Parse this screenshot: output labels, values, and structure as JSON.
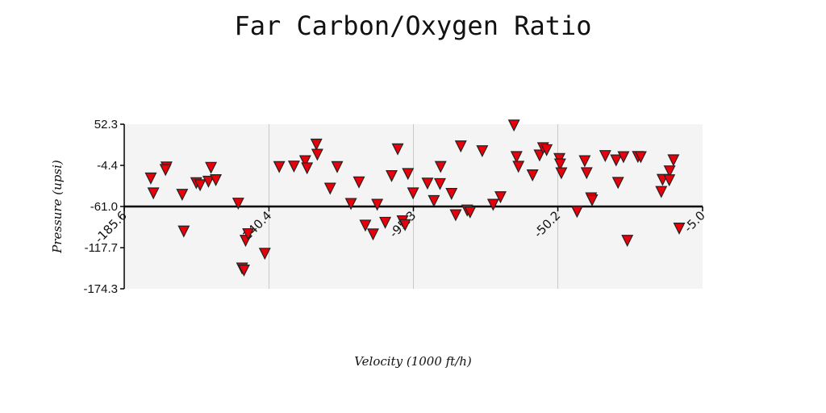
{
  "chart_data": {
    "type": "scatter",
    "title": "Far Carbon/Oxygen Ratio",
    "xlabel": "Velocity (1000 ft/h)",
    "ylabel": "Pressure (upsi)",
    "xlim": [
      -185.6,
      -5.0
    ],
    "ylim": [
      -174.3,
      52.3
    ],
    "x_ticks": [
      "-185.6",
      "-140.4",
      "-95.3",
      "-50.2",
      "-5.0"
    ],
    "y_ticks": [
      "52.3",
      "-4.4",
      "-61.0",
      "-117.7",
      "-174.3"
    ],
    "x_tick_values": [
      -185.6,
      -140.4,
      -95.3,
      -50.2,
      -5.0
    ],
    "y_tick_values": [
      52.3,
      -4.4,
      -61.0,
      -117.7,
      -174.3
    ],
    "baseline_y": -61.0,
    "grid": "vertical",
    "marker": "triangle-down",
    "colors": {
      "marker_fill": "#e8000b",
      "marker_stroke": "#222222",
      "plot_bg": "#f4f4f4",
      "axis": "#000000",
      "grid": "#c8c8c8"
    },
    "points": [
      [
        -177.3,
        -21.6
      ],
      [
        -176.5,
        -42.1
      ],
      [
        -172.4,
        -6.4
      ],
      [
        -172.7,
        -9.9
      ],
      [
        -167.5,
        -44.0
      ],
      [
        -167.0,
        -94.6
      ],
      [
        -163.1,
        -28.0
      ],
      [
        -161.9,
        -30.9
      ],
      [
        -159.3,
        -26.0
      ],
      [
        -158.5,
        -6.9
      ],
      [
        -157.0,
        -23.9
      ],
      [
        -150.0,
        -56.2
      ],
      [
        -148.8,
        -145.5
      ],
      [
        -148.2,
        -148.3
      ],
      [
        -147.7,
        -107.4
      ],
      [
        -146.9,
        -98.3
      ],
      [
        -141.7,
        -125.2
      ],
      [
        -137.2,
        -5.8
      ],
      [
        -132.6,
        -5.1
      ],
      [
        -129.1,
        2.2
      ],
      [
        -128.5,
        -7.6
      ],
      [
        -125.6,
        25.1
      ],
      [
        -125.3,
        11.1
      ],
      [
        -121.3,
        -35.6
      ],
      [
        -119.1,
        -5.9
      ],
      [
        -114.8,
        -56.6
      ],
      [
        -112.3,
        -27.0
      ],
      [
        -110.3,
        -86.5
      ],
      [
        -107.9,
        -98.6
      ],
      [
        -106.6,
        -57.8
      ],
      [
        -104.1,
        -82.6
      ],
      [
        -102.1,
        -18.3
      ],
      [
        -100.2,
        18.6
      ],
      [
        -98.7,
        -80.5
      ],
      [
        -97.9,
        -85.8
      ],
      [
        -97.0,
        -15.4
      ],
      [
        -95.4,
        -42.1
      ],
      [
        -90.9,
        -28.6
      ],
      [
        -88.9,
        -52.6
      ],
      [
        -86.8,
        -5.7
      ],
      [
        -87.0,
        -29.3
      ],
      [
        -83.4,
        -42.8
      ],
      [
        -82.1,
        -72.2
      ],
      [
        -80.5,
        22.6
      ],
      [
        -78.5,
        -65.7
      ],
      [
        -77.6,
        -68.3
      ],
      [
        -73.8,
        16.0
      ],
      [
        -70.4,
        -57.8
      ],
      [
        -68.1,
        -47.4
      ],
      [
        -63.9,
        51.4
      ],
      [
        -63.1,
        7.9
      ],
      [
        -62.5,
        -5.5
      ],
      [
        -58.1,
        -17.3
      ],
      [
        -55.9,
        10.1
      ],
      [
        -54.8,
        20.1
      ],
      [
        -53.7,
        17.4
      ],
      [
        -49.7,
        5.3
      ],
      [
        -49.5,
        -2.3
      ],
      [
        -49.1,
        -14.4
      ],
      [
        -44.2,
        -67.6
      ],
      [
        -41.8,
        2.2
      ],
      [
        -41.2,
        -14.3
      ],
      [
        -39.8,
        -48.9
      ],
      [
        -39.5,
        -51.7
      ],
      [
        -35.4,
        9.3
      ],
      [
        -32.0,
        3.3
      ],
      [
        -31.4,
        -27.7
      ],
      [
        -29.7,
        7.8
      ],
      [
        -28.5,
        -107.4
      ],
      [
        -25.2,
        8.1
      ],
      [
        -24.3,
        7.8
      ],
      [
        -17.9,
        -40.2
      ],
      [
        -17.5,
        -23.5
      ],
      [
        -15.3,
        -11.8
      ],
      [
        -15.4,
        -24.1
      ],
      [
        -14.1,
        3.4
      ],
      [
        -12.3,
        -90.6
      ]
    ]
  }
}
